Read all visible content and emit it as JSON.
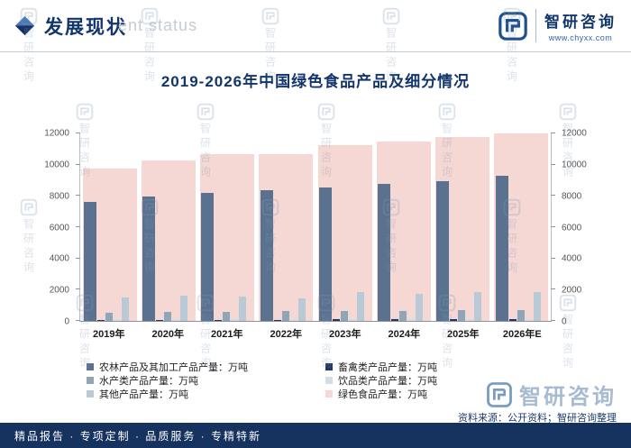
{
  "header": {
    "title": "发展现状",
    "ghost_text": "ent status",
    "brand_name": "智研咨询",
    "brand_site": "www.chyxx.com"
  },
  "chart": {
    "title": "2019-2026年中国绿色食品产品及细分情况"
  },
  "chart_data": {
    "type": "bar",
    "title": "2019-2026年中国绿色食品产品及细分情况",
    "categories": [
      "2019年",
      "2020年",
      "2021年",
      "2022年",
      "2023年",
      "2024年",
      "2025年",
      "2026年E"
    ],
    "series": [
      {
        "name": "农林产品及其加工产品产量：万吨",
        "color": "#5a7290",
        "values": [
          7620,
          7980,
          8180,
          8350,
          8520,
          8780,
          8960,
          9270
        ]
      },
      {
        "name": "畜禽类产品产量：万吨",
        "color": "#1f3864",
        "values": [
          70,
          75,
          80,
          85,
          90,
          95,
          100,
          105
        ]
      },
      {
        "name": "水产类产品产量：万吨",
        "color": "#8fa5b8",
        "values": [
          540,
          570,
          590,
          610,
          640,
          660,
          690,
          710
        ]
      },
      {
        "name": "饮品类产品产量：万吨",
        "color": "#d3dde6",
        "values": [
          100,
          105,
          110,
          115,
          120,
          125,
          130,
          135
        ]
      },
      {
        "name": "其他产品产量：万吨",
        "color": "#b9c9d6",
        "values": [
          1480,
          1620,
          1560,
          1450,
          1820,
          1760,
          1860,
          1830
        ]
      },
      {
        "name": "绿色食品产量：万吨",
        "color": "#f5d7d3",
        "values": [
          9760,
          10260,
          10650,
          10700,
          11260,
          11500,
          11760,
          12000
        ],
        "role": "background"
      }
    ],
    "ylim": [
      0,
      12000
    ],
    "yticks": [
      0,
      2000,
      4000,
      6000,
      8000,
      10000,
      12000
    ],
    "legend_position": "bottom",
    "grid": false,
    "xlabel": "",
    "ylabel": ""
  },
  "footer": {
    "services": "精品报告 · 专项定制 · 品质服务 · 专精特新",
    "source": "资料来源：公开资料；智研咨询整理",
    "brand_name": "智研咨询"
  },
  "watermark": {
    "text": "智研咨询"
  }
}
